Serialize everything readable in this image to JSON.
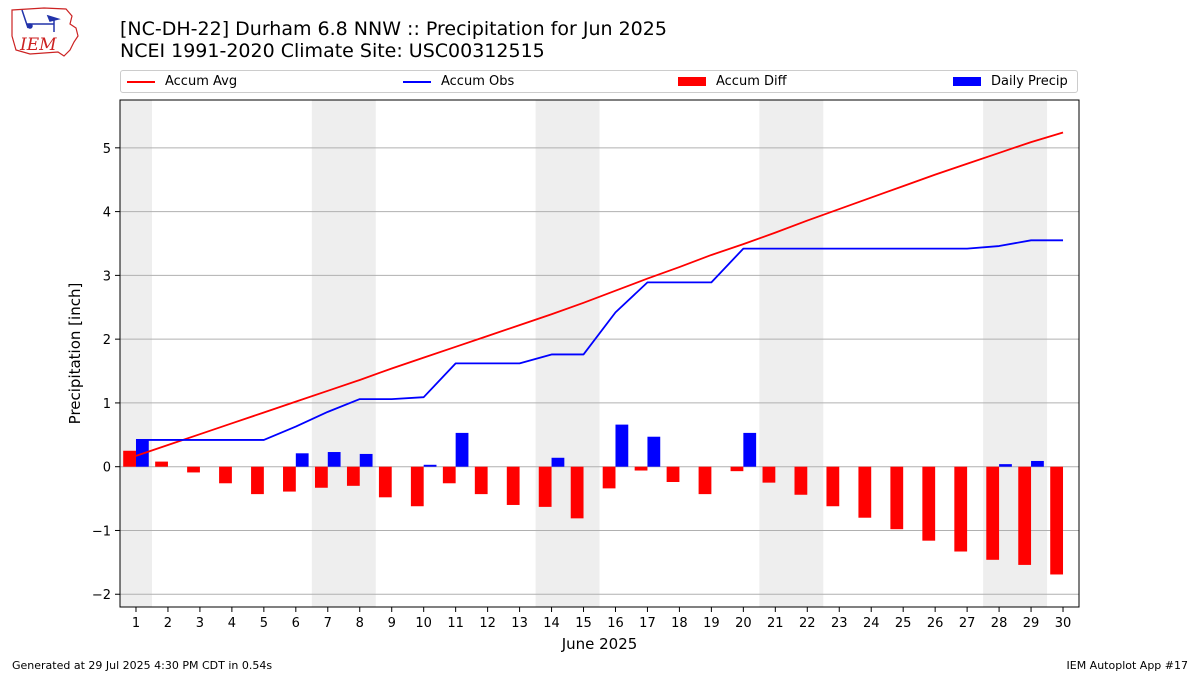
{
  "title_line1": "[NC-DH-22] Durham 6.8 NNW :: Precipitation for Jun 2025",
  "title_line2": "NCEI 1991-2020 Climate Site: USC00312515",
  "logo_text": "IEM",
  "footer_left": "Generated at 29 Jul 2025 4:30 PM CDT in 0.54s",
  "footer_right": "IEM Autoplot App #17",
  "colors": {
    "accum_avg": "#ff0000",
    "accum_obs": "#0000ff",
    "accum_diff": "#ff0000",
    "daily_precip": "#0000ff",
    "weekend_shade": "#eeeeee",
    "grid": "#b0b0b0",
    "logo": "#cc2222"
  },
  "legend": [
    {
      "label": "Accum Avg",
      "kind": "line",
      "color": "#ff0000"
    },
    {
      "label": "Accum Obs",
      "kind": "line",
      "color": "#0000ff"
    },
    {
      "label": "Accum Diff",
      "kind": "box",
      "color": "#ff0000"
    },
    {
      "label": "Daily Precip",
      "kind": "box",
      "color": "#0000ff"
    }
  ],
  "chart_data": {
    "type": "bar",
    "xlabel": "June 2025",
    "ylabel": "Precipitation [inch]",
    "xlim": [
      0.5,
      30.5
    ],
    "ylim": [
      -2.2,
      5.75
    ],
    "x_ticks": [
      1,
      2,
      3,
      4,
      5,
      6,
      7,
      8,
      9,
      10,
      11,
      12,
      13,
      14,
      15,
      16,
      17,
      18,
      19,
      20,
      21,
      22,
      23,
      24,
      25,
      26,
      27,
      28,
      29,
      30
    ],
    "y_ticks": [
      -2,
      -1,
      0,
      1,
      2,
      3,
      4,
      5
    ],
    "y_tick_labels": [
      "−2",
      "−1",
      "0",
      "1",
      "2",
      "3",
      "4",
      "5"
    ],
    "grid": "horizontal",
    "legend_position": "top",
    "weekend_shading": [
      [
        0.5,
        1.5
      ],
      [
        6.5,
        8.5
      ],
      [
        13.5,
        15.5
      ],
      [
        20.5,
        22.5
      ],
      [
        27.5,
        29.5
      ]
    ],
    "days": [
      1,
      2,
      3,
      4,
      5,
      6,
      7,
      8,
      9,
      10,
      11,
      12,
      13,
      14,
      15,
      16,
      17,
      18,
      19,
      20,
      21,
      22,
      23,
      24,
      25,
      26,
      27,
      28,
      29,
      30
    ],
    "series": [
      {
        "name": "Accum Avg",
        "type": "line",
        "values": [
          0.17,
          0.34,
          0.51,
          0.68,
          0.85,
          1.02,
          1.19,
          1.36,
          1.54,
          1.71,
          1.88,
          2.05,
          2.22,
          2.39,
          2.57,
          2.76,
          2.95,
          3.13,
          3.32,
          3.49,
          3.67,
          3.86,
          4.04,
          4.22,
          4.4,
          4.58,
          4.75,
          4.92,
          5.09,
          5.24
        ]
      },
      {
        "name": "Accum Obs",
        "type": "line",
        "values": [
          0.42,
          0.42,
          0.42,
          0.42,
          0.42,
          0.63,
          0.86,
          1.06,
          1.06,
          1.09,
          1.62,
          1.62,
          1.62,
          1.76,
          1.76,
          2.42,
          2.89,
          2.89,
          2.89,
          3.42,
          3.42,
          3.42,
          3.42,
          3.42,
          3.42,
          3.42,
          3.42,
          3.46,
          3.55,
          3.55
        ]
      },
      {
        "name": "Accum Diff",
        "type": "bar",
        "values": [
          0.25,
          0.08,
          -0.09,
          -0.26,
          -0.43,
          -0.39,
          -0.33,
          -0.3,
          -0.48,
          -0.62,
          -0.26,
          -0.43,
          -0.6,
          -0.63,
          -0.81,
          -0.34,
          -0.06,
          -0.24,
          -0.43,
          -0.07,
          -0.25,
          -0.44,
          -0.62,
          -0.8,
          -0.98,
          -1.16,
          -1.33,
          -1.46,
          -1.54,
          -1.69
        ]
      },
      {
        "name": "Daily Precip",
        "type": "bar",
        "values": [
          0.42,
          0,
          0,
          0,
          0,
          0.21,
          0.23,
          0.2,
          0,
          0.03,
          0.53,
          0,
          0,
          0.14,
          0,
          0.66,
          0.47,
          0,
          0,
          0.53,
          0,
          0,
          0,
          0,
          0,
          0,
          0,
          0.04,
          0.09,
          0
        ]
      }
    ]
  }
}
